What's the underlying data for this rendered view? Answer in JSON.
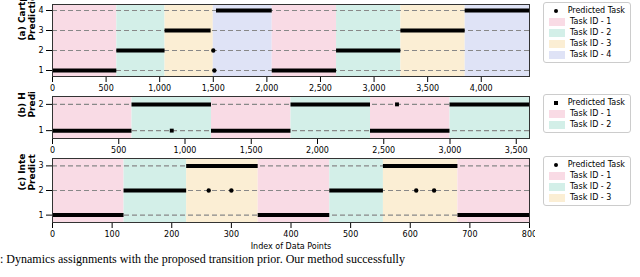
{
  "chart_data": [
    {
      "type": "scatter",
      "ylabel": [
        "(a) Cartpole",
        "Prediction"
      ],
      "xlim": [
        0,
        4450
      ],
      "xticks": [
        0,
        500,
        1000,
        1500,
        2000,
        2500,
        3000,
        3500,
        4000
      ],
      "ylim": [
        0.7,
        4.3
      ],
      "yticks": [
        1,
        2,
        3,
        4
      ],
      "grid": true,
      "legend": "right",
      "tasks": [
        {
          "name": "Task ID - 1",
          "color": "#f9dbe5"
        },
        {
          "name": "Task ID - 2",
          "color": "#d3efe8"
        },
        {
          "name": "Task ID - 3",
          "color": "#fbeed4"
        },
        {
          "name": "Task ID - 4",
          "color": "#dfe3f6"
        }
      ],
      "segments": [
        {
          "start": 0,
          "end": 600,
          "task": 1
        },
        {
          "start": 600,
          "end": 1050,
          "task": 2
        },
        {
          "start": 1050,
          "end": 1500,
          "task": 3
        },
        {
          "start": 1500,
          "end": 2050,
          "task": 4
        },
        {
          "start": 2050,
          "end": 2650,
          "task": 1
        },
        {
          "start": 2650,
          "end": 3250,
          "task": 2
        },
        {
          "start": 3250,
          "end": 3850,
          "task": 3
        },
        {
          "start": 3850,
          "end": 4450,
          "task": 4
        }
      ],
      "series": [
        {
          "name": "Predicted Task",
          "color": "#000000",
          "marker": "circle",
          "runs": [
            {
              "start": 0,
              "end": 600,
              "task": 1
            },
            {
              "start": 600,
              "end": 1050,
              "task": 2
            },
            {
              "start": 1050,
              "end": 1480,
              "task": 3
            },
            {
              "start": 1530,
              "end": 2050,
              "task": 4
            },
            {
              "start": 2050,
              "end": 2650,
              "task": 1
            },
            {
              "start": 2650,
              "end": 3250,
              "task": 2
            },
            {
              "start": 3250,
              "end": 3850,
              "task": 3
            },
            {
              "start": 3850,
              "end": 4450,
              "task": 4
            }
          ],
          "points": [
            {
              "x": 1500,
              "y": 2
            },
            {
              "x": 1510,
              "y": 1
            }
          ]
        }
      ]
    },
    {
      "type": "scatter",
      "ylabel": [
        "(b) Halfcheetah",
        "Prediction"
      ],
      "xlim": [
        0,
        3600
      ],
      "xticks": [
        0,
        500,
        1000,
        1500,
        2000,
        2500,
        3000,
        3500
      ],
      "ylim": [
        0.7,
        2.3
      ],
      "yticks": [
        1,
        2
      ],
      "grid": true,
      "legend": "right",
      "tasks": [
        {
          "name": "Task ID - 1",
          "color": "#f9dbe5"
        },
        {
          "name": "Task ID - 2",
          "color": "#d3efe8"
        }
      ],
      "segments": [
        {
          "start": 0,
          "end": 600,
          "task": 1
        },
        {
          "start": 600,
          "end": 1200,
          "task": 2
        },
        {
          "start": 1200,
          "end": 1800,
          "task": 1
        },
        {
          "start": 1800,
          "end": 2400,
          "task": 2
        },
        {
          "start": 2400,
          "end": 3000,
          "task": 1
        },
        {
          "start": 3000,
          "end": 3600,
          "task": 2
        }
      ],
      "series": [
        {
          "name": "Predicted Task",
          "color": "#000000",
          "marker": "square",
          "runs": [
            {
              "start": 0,
              "end": 600,
              "task": 1
            },
            {
              "start": 600,
              "end": 1200,
              "task": 2
            },
            {
              "start": 1200,
              "end": 1800,
              "task": 1
            },
            {
              "start": 1800,
              "end": 2400,
              "task": 2
            },
            {
              "start": 2400,
              "end": 3000,
              "task": 1
            },
            {
              "start": 3000,
              "end": 3600,
              "task": 2
            }
          ],
          "points": [
            {
              "x": 900,
              "y": 1
            },
            {
              "x": 2600,
              "y": 2
            }
          ]
        }
      ]
    },
    {
      "type": "scatter",
      "ylabel": [
        "(c) Intersection",
        "Prediction"
      ],
      "xlabel": "Index of Data Points",
      "xlim": [
        0,
        800
      ],
      "xticks": [
        0,
        100,
        200,
        300,
        400,
        500,
        600,
        700,
        800
      ],
      "ylim": [
        0.7,
        3.3
      ],
      "yticks": [
        1,
        2,
        3
      ],
      "grid": true,
      "legend": "right",
      "tasks": [
        {
          "name": "Task ID - 1",
          "color": "#f9dbe5"
        },
        {
          "name": "Task ID - 2",
          "color": "#d3efe8"
        },
        {
          "name": "Task ID - 3",
          "color": "#fbeed4"
        }
      ],
      "segments": [
        {
          "start": 0,
          "end": 120,
          "task": 1
        },
        {
          "start": 120,
          "end": 225,
          "task": 2
        },
        {
          "start": 225,
          "end": 345,
          "task": 3
        },
        {
          "start": 345,
          "end": 465,
          "task": 1
        },
        {
          "start": 465,
          "end": 555,
          "task": 2
        },
        {
          "start": 555,
          "end": 680,
          "task": 3
        },
        {
          "start": 680,
          "end": 800,
          "task": 1
        }
      ],
      "series": [
        {
          "name": "Predicted Task",
          "color": "#000000",
          "marker": "circle",
          "runs": [
            {
              "start": 0,
              "end": 120,
              "task": 1
            },
            {
              "start": 120,
              "end": 225,
              "task": 2
            },
            {
              "start": 225,
              "end": 345,
              "task": 3
            },
            {
              "start": 345,
              "end": 465,
              "task": 1
            },
            {
              "start": 465,
              "end": 555,
              "task": 2
            },
            {
              "start": 555,
              "end": 680,
              "task": 3
            },
            {
              "start": 680,
              "end": 800,
              "task": 1
            }
          ],
          "points": [
            {
              "x": 262,
              "y": 2
            },
            {
              "x": 300,
              "y": 2
            },
            {
              "x": 610,
              "y": 2
            },
            {
              "x": 640,
              "y": 2
            }
          ]
        }
      ]
    }
  ],
  "caption": ": Dynamics assignments with the proposed transition prior. Our method successfully"
}
